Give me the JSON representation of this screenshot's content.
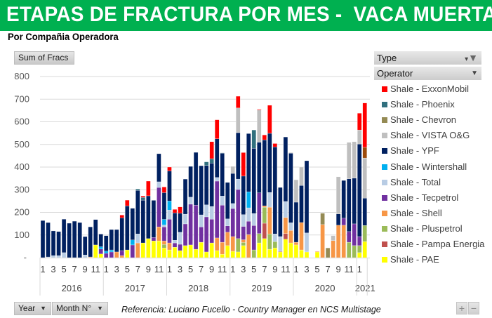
{
  "header": {
    "title": "ETAPAS DE FRACTURA POR MES -  VACA MUERTA",
    "subtitle": "Por Compañia Operadora"
  },
  "pivot": {
    "value_field": "Sum of Fracs",
    "type_field": "Type",
    "operator_field": "Operator",
    "year_field": "Year",
    "month_field": "Month N°",
    "expand_label": "+",
    "collapse_label": "−"
  },
  "footer": {
    "reference": "Referencia: Luciano Fucello - Country Manager en NCS Multistage"
  },
  "icons": {
    "type_filter": "funnel-dropdown-icon",
    "operator_dropdown": "chevron-down-icon",
    "year_dropdown": "chevron-down-icon",
    "month_dropdown": "chevron-down-icon"
  },
  "chart_data": {
    "type": "bar",
    "stacked": true,
    "title": "ETAPAS DE FRACTURA POR MES -  VACA MUERTA",
    "subtitle": "Por Compañia Operadora",
    "ylabel": "Sum of Fracs",
    "xlabel": "",
    "ylim": [
      0,
      800
    ],
    "yticks": [
      0,
      100,
      200,
      300,
      400,
      500,
      600,
      700,
      800
    ],
    "ytick_labels": [
      "-",
      "100",
      "200",
      "300",
      "400",
      "500",
      "600",
      "700",
      "800"
    ],
    "grid": true,
    "legend_position": "right",
    "years": [
      {
        "label": "2016",
        "months": 12
      },
      {
        "label": "2017",
        "months": 12
      },
      {
        "label": "2018",
        "months": 12
      },
      {
        "label": "2019",
        "months": 12
      },
      {
        "label": "2020",
        "months": 12
      },
      {
        "label": "2021",
        "months": 2
      }
    ],
    "month_tick_labels": [
      "1",
      "3",
      "5",
      "7",
      "9",
      "11"
    ],
    "categories": [
      "2016-1",
      "2016-2",
      "2016-3",
      "2016-4",
      "2016-5",
      "2016-6",
      "2016-7",
      "2016-8",
      "2016-9",
      "2016-10",
      "2016-11",
      "2016-12",
      "2017-1",
      "2017-2",
      "2017-3",
      "2017-4",
      "2017-5",
      "2017-6",
      "2017-7",
      "2017-8",
      "2017-9",
      "2017-10",
      "2017-11",
      "2017-12",
      "2018-1",
      "2018-2",
      "2018-3",
      "2018-4",
      "2018-5",
      "2018-6",
      "2018-7",
      "2018-8",
      "2018-9",
      "2018-10",
      "2018-11",
      "2018-12",
      "2019-1",
      "2019-2",
      "2019-3",
      "2019-4",
      "2019-5",
      "2019-6",
      "2019-7",
      "2019-8",
      "2019-9",
      "2019-10",
      "2019-11",
      "2019-12",
      "2020-1",
      "2020-2",
      "2020-3",
      "2020-4",
      "2020-5",
      "2020-6",
      "2020-7",
      "2020-8",
      "2020-9",
      "2020-10",
      "2020-11",
      "2020-12",
      "2021-1",
      "2021-2"
    ],
    "series": [
      {
        "name": "Shale - PAE",
        "color": "#FFFF00",
        "values": [
          0,
          0,
          0,
          0,
          0,
          0,
          0,
          0,
          0,
          0,
          56,
          16,
          0,
          0,
          0,
          0,
          34,
          0,
          0,
          65,
          84,
          74,
          74,
          43,
          34,
          46,
          31,
          53,
          56,
          37,
          68,
          25,
          65,
          31,
          15,
          53,
          28,
          25,
          53,
          0,
          0,
          65,
          84,
          37,
          43,
          25,
          81,
          65,
          56,
          34,
          25,
          0,
          25,
          0,
          0,
          0,
          0,
          0,
          0,
          0,
          22,
          71
        ]
      },
      {
        "name": "Shale - Pampa Energia",
        "color": "#C0504D",
        "values": [
          0,
          0,
          0,
          0,
          0,
          0,
          0,
          0,
          0,
          0,
          0,
          0,
          0,
          0,
          0,
          0,
          0,
          0,
          0,
          0,
          0,
          0,
          0,
          0,
          0,
          0,
          0,
          0,
          0,
          0,
          0,
          0,
          0,
          0,
          0,
          0,
          0,
          0,
          0,
          0,
          0,
          0,
          68,
          0,
          0,
          3,
          25,
          0,
          0,
          0,
          0,
          0,
          0,
          0,
          0,
          0,
          0,
          0,
          0,
          0,
          0,
          0
        ]
      },
      {
        "name": "Shale - Pluspetrol",
        "color": "#9BBB59",
        "values": [
          0,
          0,
          0,
          0,
          0,
          0,
          0,
          0,
          0,
          0,
          0,
          0,
          0,
          0,
          0,
          0,
          0,
          0,
          0,
          0,
          0,
          0,
          0,
          15,
          0,
          0,
          0,
          0,
          0,
          0,
          0,
          0,
          0,
          0,
          0,
          0,
          0,
          59,
          14,
          0,
          34,
          41,
          71,
          68,
          28,
          0,
          0,
          0,
          0,
          0,
          0,
          0,
          0,
          0,
          0,
          0,
          0,
          0,
          68,
          53,
          31,
          71
        ]
      },
      {
        "name": "Shale - Shell",
        "color": "#F79646",
        "values": [
          0,
          0,
          0,
          0,
          0,
          0,
          0,
          0,
          0,
          3,
          0,
          0,
          0,
          0,
          25,
          9,
          0,
          0,
          65,
          0,
          0,
          0,
          62,
          16,
          31,
          0,
          0,
          0,
          0,
          0,
          0,
          0,
          0,
          56,
          53,
          59,
          65,
          0,
          12,
          102,
          0,
          0,
          6,
          118,
          0,
          0,
          71,
          55,
          12,
          121,
          0,
          0,
          3,
          146,
          0,
          75,
          143,
          143,
          0,
          0,
          0,
          0
        ]
      },
      {
        "name": "Shale - Tecpetrol",
        "color": "#7030A0",
        "values": [
          0,
          0,
          0,
          0,
          0,
          0,
          0,
          0,
          0,
          0,
          0,
          22,
          19,
          25,
          0,
          22,
          0,
          56,
          0,
          0,
          0,
          15,
          174,
          62,
          105,
          19,
          28,
          96,
          180,
          195,
          68,
          155,
          105,
          251,
          164,
          28,
          124,
          217,
          59,
          59,
          108,
          180,
          0,
          0,
          0,
          0,
          0,
          0,
          0,
          0,
          0,
          0,
          0,
          0,
          0,
          0,
          0,
          31,
          47,
          96,
          40,
          0
        ]
      },
      {
        "name": "Shale - Total",
        "color": "#B8CCE4",
        "values": [
          0,
          3,
          9,
          9,
          22,
          0,
          0,
          0,
          12,
          0,
          0,
          0,
          0,
          0,
          0,
          0,
          0,
          0,
          40,
          0,
          0,
          0,
          25,
          8,
          40,
          12,
          53,
          43,
          31,
          0,
          53,
          53,
          56,
          16,
          40,
          31,
          22,
          46,
          52,
          59,
          53,
          0,
          0,
          65,
          34,
          65,
          71,
          34,
          0,
          0,
          84,
          0,
          0,
          0,
          0,
          0,
          0,
          0,
          0,
          0,
          0,
          0
        ]
      },
      {
        "name": "Shale - Wintershall",
        "color": "#00B0F0",
        "values": [
          0,
          0,
          0,
          0,
          0,
          0,
          0,
          0,
          0,
          0,
          0,
          10,
          10,
          9,
          0,
          0,
          0,
          22,
          0,
          0,
          0,
          0,
          0,
          25,
          40,
          0,
          0,
          0,
          0,
          0,
          0,
          0,
          0,
          0,
          0,
          0,
          0,
          0,
          0,
          71,
          0,
          0,
          0,
          0,
          0,
          0,
          0,
          0,
          0,
          0,
          0,
          0,
          0,
          0,
          0,
          0,
          0,
          0,
          0,
          0,
          0,
          0
        ]
      },
      {
        "name": "Shale - YPF",
        "color": "#002060",
        "values": [
          164,
          152,
          109,
          106,
          148,
          152,
          161,
          155,
          81,
          133,
          112,
          56,
          68,
          90,
          99,
          145,
          195,
          140,
          192,
          189,
          189,
          164,
          124,
          118,
          133,
          121,
          84,
          155,
          136,
          233,
          217,
          174,
          192,
          171,
          189,
          161,
          133,
          205,
          170,
          257,
          288,
          224,
          291,
          261,
          384,
          217,
          285,
          307,
          177,
          164,
          319,
          0,
          0,
          0,
          0,
          0,
          50,
          167,
          233,
          202,
          409,
          121
        ]
      },
      {
        "name": "Shale - VISTA O&G",
        "color": "#BFBFBF",
        "values": [
          0,
          0,
          0,
          0,
          0,
          0,
          0,
          0,
          0,
          0,
          0,
          0,
          0,
          0,
          0,
          0,
          0,
          0,
          0,
          0,
          0,
          0,
          0,
          0,
          0,
          0,
          0,
          0,
          0,
          0,
          0,
          0,
          0,
          0,
          0,
          0,
          31,
          109,
          0,
          0,
          0,
          142,
          0,
          0,
          0,
          0,
          0,
          3,
          99,
          81,
          0,
          0,
          0,
          0,
          0,
          22,
          164,
          0,
          161,
          161,
          62,
          177
        ]
      },
      {
        "name": "Shale - Chevron",
        "color": "#948A54",
        "values": [
          0,
          0,
          0,
          0,
          0,
          0,
          0,
          0,
          0,
          0,
          0,
          0,
          0,
          0,
          0,
          0,
          0,
          0,
          0,
          0,
          0,
          0,
          0,
          0,
          0,
          0,
          0,
          0,
          0,
          0,
          0,
          0,
          0,
          0,
          0,
          0,
          0,
          0,
          0,
          0,
          0,
          0,
          0,
          0,
          0,
          0,
          0,
          0,
          0,
          0,
          0,
          0,
          0,
          50,
          43,
          0,
          0,
          0,
          0,
          0,
          0,
          0
        ]
      },
      {
        "name": "",
        "color": "#9C4A0B",
        "values": [
          0,
          0,
          0,
          0,
          0,
          0,
          0,
          0,
          0,
          0,
          0,
          0,
          0,
          0,
          0,
          0,
          0,
          0,
          0,
          0,
          0,
          0,
          0,
          0,
          0,
          0,
          0,
          0,
          0,
          0,
          0,
          0,
          0,
          0,
          0,
          0,
          0,
          0,
          0,
          0,
          0,
          0,
          0,
          0,
          0,
          0,
          0,
          0,
          0,
          0,
          0,
          0,
          0,
          0,
          0,
          0,
          0,
          0,
          0,
          0,
          0,
          47
        ]
      },
      {
        "name": "Shale - Phoenix",
        "color": "#31707E",
        "values": [
          0,
          0,
          0,
          0,
          0,
          0,
          0,
          0,
          0,
          0,
          0,
          0,
          0,
          0,
          0,
          0,
          0,
          0,
          6,
          12,
          0,
          0,
          0,
          0,
          0,
          0,
          0,
          0,
          0,
          0,
          0,
          16,
          19,
          0,
          2,
          0,
          0,
          0,
          0,
          0,
          81,
          0,
          0,
          0,
          0,
          0,
          0,
          0,
          0,
          0,
          0,
          0,
          0,
          0,
          0,
          0,
          0,
          0,
          0,
          0,
          0,
          0
        ]
      },
      {
        "name": "Shale - ExxonMobil",
        "color": "#FF0000",
        "values": [
          0,
          0,
          0,
          0,
          0,
          0,
          0,
          0,
          0,
          0,
          0,
          0,
          0,
          0,
          0,
          12,
          25,
          0,
          0,
          6,
          65,
          0,
          0,
          25,
          17,
          15,
          28,
          0,
          0,
          0,
          0,
          0,
          75,
          84,
          0,
          0,
          0,
          52,
          104,
          0,
          0,
          3,
          22,
          124,
          15,
          0,
          0,
          0,
          0,
          0,
          0,
          0,
          0,
          0,
          0,
          0,
          0,
          0,
          0,
          0,
          74,
          196
        ]
      }
    ],
    "legend_order": [
      "Shale - ExxonMobil",
      "Shale - Phoenix",
      "Shale - Chevron",
      "Shale - VISTA O&G",
      "Shale - YPF",
      "Shale - Wintershall",
      "Shale - Total",
      "Shale - Tecpetrol",
      "Shale - Shell",
      "Shale - Pluspetrol",
      "Shale - Pampa Energia",
      "Shale - PAE"
    ]
  }
}
